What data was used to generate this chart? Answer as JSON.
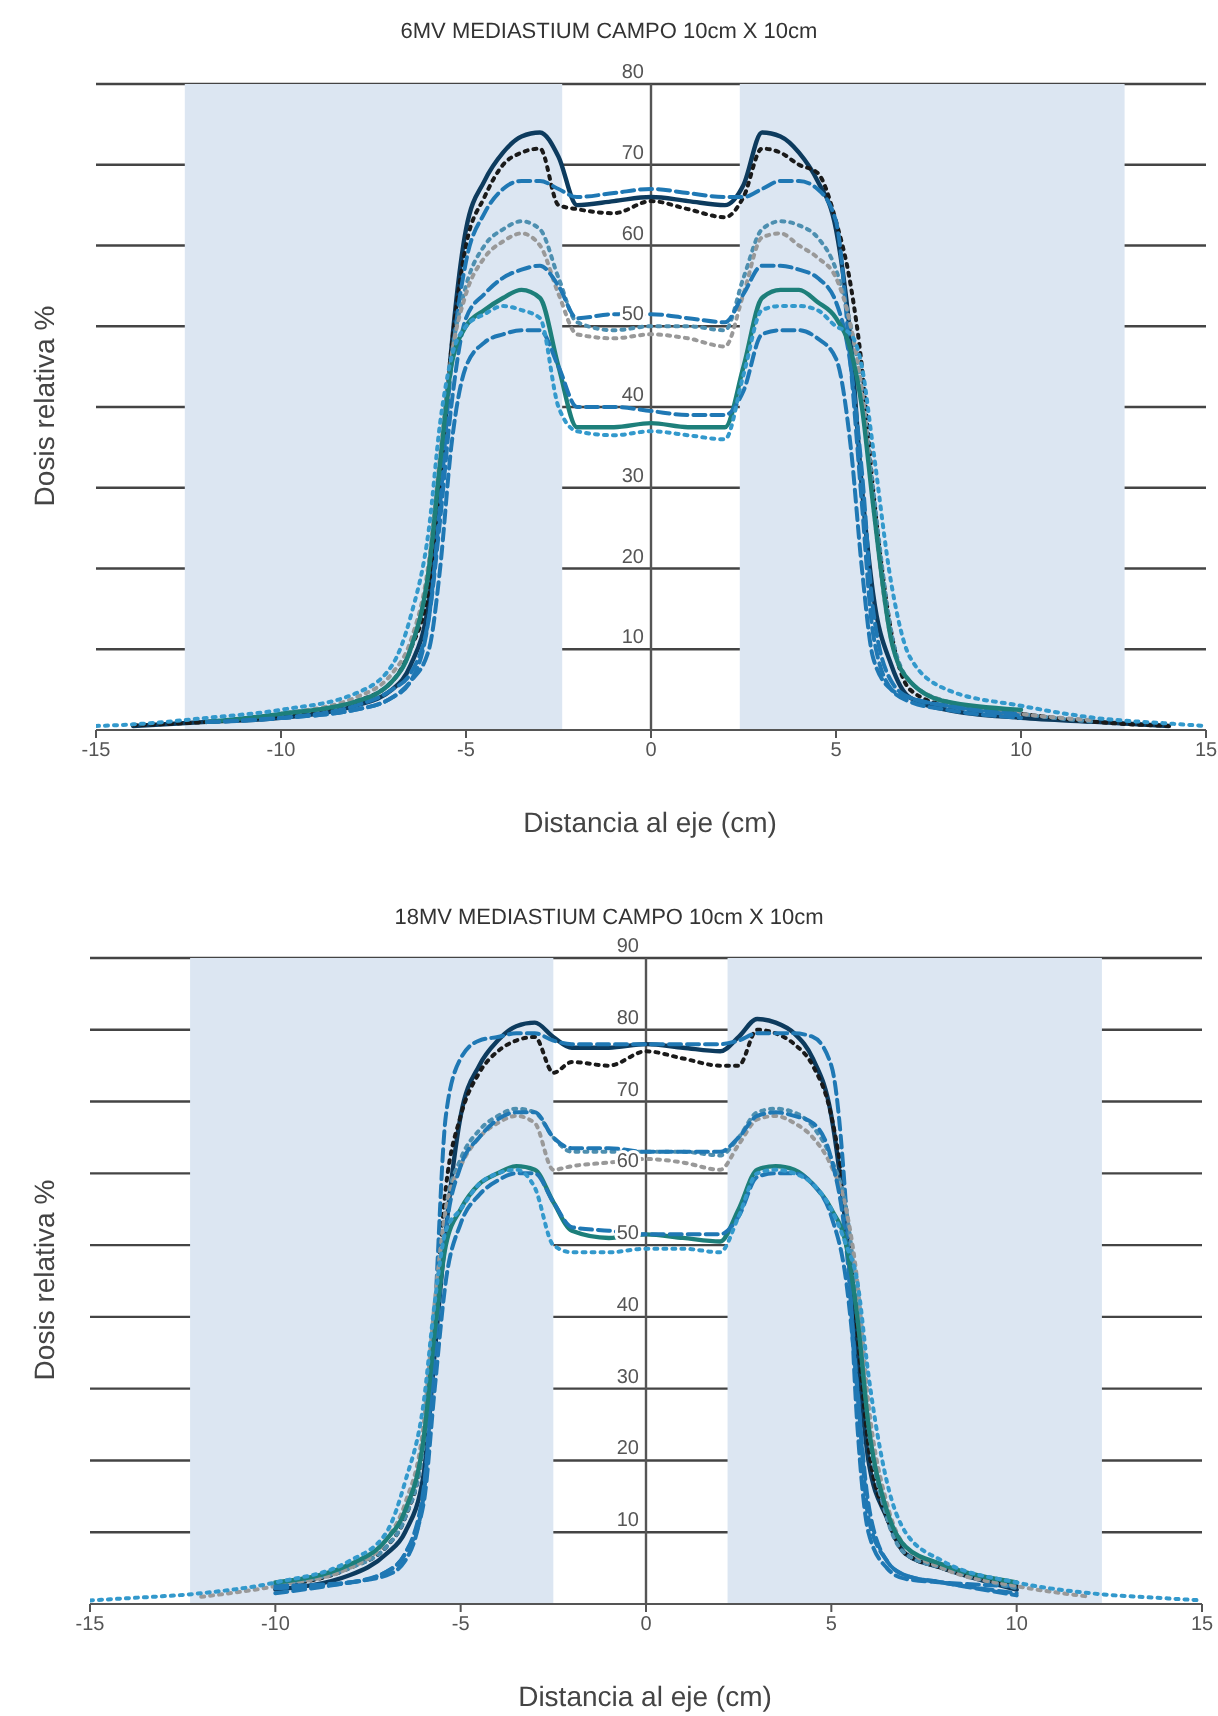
{
  "chart_data": [
    {
      "type": "line",
      "title": "6MV MEDIASTIUM CAMPO 10cm X 10cm",
      "xlabel": "Distancia al eje (cm)",
      "ylabel": "Dosis relativa %",
      "x": [
        -15,
        -14,
        -12,
        -10,
        -8,
        -7,
        -6.5,
        -6,
        -5.7,
        -5.4,
        -5,
        -4.5,
        -4,
        -3.5,
        -3,
        -2.5,
        -2,
        -1,
        0,
        1,
        2,
        2.5,
        3,
        3.5,
        4,
        4.5,
        5,
        5.4,
        5.7,
        6,
        6.5,
        7,
        8,
        10,
        12,
        14,
        15
      ],
      "xlim": [
        -15,
        15
      ],
      "xticks": [
        -15,
        -10,
        -5,
        0,
        5,
        10,
        15
      ],
      "ylim": [
        0,
        80
      ],
      "yticks": [
        10,
        20,
        30,
        40,
        50,
        60,
        70,
        80
      ],
      "grid": "y",
      "bands": [
        {
          "axis": "x",
          "from": -12.6,
          "to": -2.4,
          "color": "#dce6f2"
        },
        {
          "axis": "x",
          "from": 2.4,
          "to": 12.8,
          "color": "#dce6f2"
        }
      ],
      "series": [
        {
          "color": "#0d3b5e",
          "line_style": "solid",
          "values": [
            null,
            0.5,
            1,
            1.5,
            3,
            5,
            8,
            16,
            30,
            47,
            62,
            68,
            71.5,
            73.5,
            74,
            71,
            65,
            65.5,
            66,
            65.5,
            65,
            67.5,
            74,
            73.5,
            71.5,
            68,
            62,
            48,
            30,
            17,
            8,
            4,
            2.5,
            1.5,
            1,
            0.5,
            null
          ]
        },
        {
          "color": "#1a1a1a",
          "line_style": "dotted",
          "values": [
            null,
            0.6,
            1,
            1.8,
            3.5,
            6,
            10,
            18,
            32,
            47,
            60,
            66,
            70,
            71.5,
            72,
            65,
            64.5,
            64,
            65.5,
            64.5,
            63.5,
            66,
            72,
            71.5,
            70,
            69,
            63,
            55,
            45,
            30,
            12,
            5,
            3,
            2,
            1,
            0.5,
            null
          ]
        },
        {
          "color": "#1f78b4",
          "line_style": "dashed",
          "values": [
            null,
            null,
            1,
            1.5,
            2.5,
            4,
            6,
            14,
            28,
            45,
            58,
            64,
            67,
            68,
            68,
            67,
            66,
            66.5,
            67,
            66.5,
            66,
            66,
            67,
            68,
            68,
            67,
            63,
            45,
            28,
            12,
            5,
            3.5,
            2.5,
            1.5,
            null,
            null,
            null
          ]
        },
        {
          "color": "#4d8fb0",
          "line_style": "dotted",
          "values": [
            null,
            null,
            1,
            2,
            3.5,
            6,
            10,
            20,
            33,
            46,
            55,
            60,
            62,
            63,
            62,
            56,
            50.5,
            49.5,
            50,
            50,
            49.5,
            56,
            62,
            63,
            62.5,
            61,
            57,
            50,
            42,
            30,
            12,
            6,
            3.5,
            2,
            1,
            null,
            null
          ]
        },
        {
          "color": "#999999",
          "line_style": "dotted",
          "values": [
            null,
            null,
            1,
            2,
            4,
            7,
            11,
            21,
            34,
            46,
            54,
            58.5,
            60.5,
            61.5,
            60,
            54,
            49,
            48.5,
            49,
            48.5,
            47.5,
            54,
            61,
            61.5,
            60,
            58.5,
            56,
            50,
            42,
            28,
            11,
            6,
            3.5,
            2,
            1.2,
            null,
            null
          ]
        },
        {
          "color": "#1f78b4",
          "line_style": "dashed",
          "values": [
            null,
            null,
            1,
            1.5,
            3,
            5,
            7,
            14,
            26,
            40,
            51,
            54,
            56,
            57,
            57.5,
            55,
            51,
            51.5,
            51.5,
            51,
            50.5,
            54,
            57.5,
            57.5,
            57,
            56,
            53,
            45,
            32,
            15,
            6,
            4,
            3,
            2,
            null,
            null,
            null
          ]
        },
        {
          "color": "#1d7f7a",
          "line_style": "solid",
          "values": [
            null,
            null,
            1,
            2,
            3.5,
            6,
            10,
            20,
            33,
            45,
            50,
            52,
            53.5,
            54.5,
            53.5,
            45,
            37.5,
            37.5,
            38,
            37.5,
            37.5,
            45,
            53.5,
            54.5,
            54.5,
            53,
            51,
            47,
            40,
            28,
            11,
            6,
            3.5,
            2.5,
            null,
            null,
            null
          ]
        },
        {
          "color": "#1f78b4",
          "line_style": "dashed",
          "values": [
            null,
            null,
            1,
            1.5,
            2.5,
            4,
            6,
            10,
            20,
            35,
            45,
            48,
            49,
            49.5,
            49.5,
            45,
            40,
            40,
            39.5,
            39,
            39,
            42,
            49,
            49.5,
            49.5,
            48.5,
            46,
            35,
            20,
            9,
            5,
            4,
            3,
            1.8,
            null,
            null,
            null
          ]
        },
        {
          "color": "#3399cc",
          "line_style": "dotted",
          "values": [
            0.5,
            0.7,
            1.5,
            2.5,
            4.5,
            8,
            14,
            25,
            38,
            46,
            50,
            51.5,
            52.5,
            52,
            51,
            40,
            37,
            36.5,
            37,
            36.5,
            36,
            44,
            52,
            52.5,
            52.5,
            52,
            50,
            49,
            45,
            35,
            18,
            9,
            5,
            3,
            1.5,
            0.8,
            0.5
          ]
        }
      ]
    },
    {
      "type": "line",
      "title": "18MV MEDIASTIUM CAMPO 10cm X 10cm",
      "xlabel": "Distancia al eje (cm)",
      "ylabel": "Dosis relativa %",
      "x": [
        -15,
        -14,
        -12,
        -10,
        -8,
        -7,
        -6.5,
        -6,
        -5.7,
        -5.4,
        -5,
        -4.5,
        -4,
        -3.5,
        -3,
        -2.5,
        -2,
        -1,
        0,
        1,
        2,
        2.5,
        3,
        3.5,
        4,
        4.5,
        5,
        5.4,
        5.7,
        6,
        6.5,
        7,
        8,
        10,
        12,
        14,
        15
      ],
      "xlim": [
        -15,
        15
      ],
      "xticks": [
        -15,
        -10,
        -5,
        0,
        5,
        10,
        15
      ],
      "ylim": [
        0,
        90
      ],
      "yticks": [
        10,
        20,
        30,
        40,
        50,
        60,
        70,
        80,
        90
      ],
      "grid": "y",
      "bands": [
        {
          "axis": "x",
          "from": -12.3,
          "to": -2.5,
          "color": "#dce6f2"
        },
        {
          "axis": "x",
          "from": 2.2,
          "to": 12.3,
          "color": "#dce6f2"
        }
      ],
      "series": [
        {
          "color": "#0d3b5e",
          "line_style": "solid",
          "values": [
            null,
            null,
            null,
            2,
            4,
            7,
            10,
            18,
            35,
            52,
            68,
            75,
            78.5,
            80.5,
            81,
            79,
            77.5,
            77.5,
            78,
            77.5,
            77,
            79,
            81.5,
            81,
            79.5,
            76,
            68,
            52,
            35,
            20,
            12,
            7,
            5,
            2,
            null,
            null,
            null
          ]
        },
        {
          "color": "#1a1a1a",
          "line_style": "dotted",
          "values": [
            null,
            null,
            null,
            2.5,
            5,
            8,
            12,
            22,
            40,
            58,
            68,
            74,
            77,
            78.5,
            79,
            74,
            75.5,
            75,
            77,
            76,
            75,
            75,
            80,
            79.5,
            78,
            75,
            68,
            55,
            38,
            22,
            12,
            7,
            5,
            2.5,
            null,
            null,
            null
          ]
        },
        {
          "color": "#1f78b4",
          "line_style": "dashed",
          "values": [
            null,
            null,
            null,
            1.5,
            3,
            4,
            6,
            15,
            40,
            68,
            76,
            78.5,
            79,
            79.5,
            79.5,
            78.5,
            78,
            78,
            78,
            78,
            78,
            78.5,
            79.5,
            79.5,
            79.5,
            79,
            75,
            55,
            25,
            10,
            5,
            3.5,
            3,
            2.5,
            null,
            null,
            null
          ]
        },
        {
          "color": "#4d8fb0",
          "line_style": "dotted",
          "values": [
            null,
            null,
            null,
            2.8,
            5,
            8,
            12,
            22,
            40,
            55,
            62,
            66,
            68,
            69,
            68.5,
            65,
            63,
            63,
            63,
            63,
            62.5,
            65,
            68.5,
            69,
            68.5,
            66.5,
            62,
            55,
            42,
            25,
            12,
            7,
            5,
            2.2,
            null,
            null,
            null
          ]
        },
        {
          "color": "#999999",
          "line_style": "dotted",
          "values": [
            null,
            null,
            1,
            2.5,
            5,
            9,
            14,
            25,
            42,
            55,
            61,
            65,
            67,
            68,
            67,
            60.5,
            61,
            61.5,
            62,
            61.5,
            60.5,
            64,
            67.5,
            68,
            67,
            65,
            61,
            55,
            45,
            28,
            14,
            8,
            5,
            2.5,
            1,
            null,
            null
          ]
        },
        {
          "color": "#1f78b4",
          "line_style": "dashed",
          "values": [
            null,
            null,
            null,
            2.5,
            3,
            4.5,
            7,
            16,
            35,
            52,
            61,
            65,
            67.5,
            68.5,
            68.5,
            65,
            63.5,
            63.5,
            63,
            63,
            63,
            65,
            68,
            68.5,
            68,
            67,
            62,
            50,
            30,
            14,
            6,
            4,
            3,
            1.5,
            null,
            null,
            null
          ]
        },
        {
          "color": "#1d7f7a",
          "line_style": "solid",
          "values": [
            null,
            null,
            null,
            3,
            5.5,
            9,
            13,
            23,
            38,
            50,
            55,
            58.5,
            60,
            61,
            60.5,
            56,
            52,
            51,
            51.5,
            51,
            50.5,
            55,
            60.5,
            61,
            60.5,
            58.5,
            55,
            50,
            40,
            25,
            13,
            8,
            5.5,
            3,
            null,
            null,
            null
          ]
        },
        {
          "color": "#1f78b4",
          "line_style": "dashed",
          "values": [
            null,
            null,
            null,
            2.2,
            3,
            4.5,
            7,
            14,
            30,
            45,
            53,
            57,
            59,
            60,
            60,
            56,
            52.5,
            52,
            51.5,
            51.5,
            51.5,
            54,
            59.5,
            60,
            60,
            58.5,
            54,
            45,
            30,
            12,
            6,
            4,
            3,
            1.2,
            null,
            null,
            null
          ]
        },
        {
          "color": "#3399cc",
          "line_style": "dotted",
          "values": [
            0.5,
            0.8,
            1.5,
            3,
            6,
            10,
            17,
            28,
            42,
            52,
            55,
            58.5,
            60,
            60.5,
            58,
            50,
            49,
            49,
            49.5,
            49.5,
            49,
            54,
            60,
            60.5,
            60,
            58.5,
            55,
            50,
            45,
            32,
            17,
            10,
            6,
            3,
            1.5,
            0.8,
            0.5
          ]
        }
      ]
    }
  ]
}
